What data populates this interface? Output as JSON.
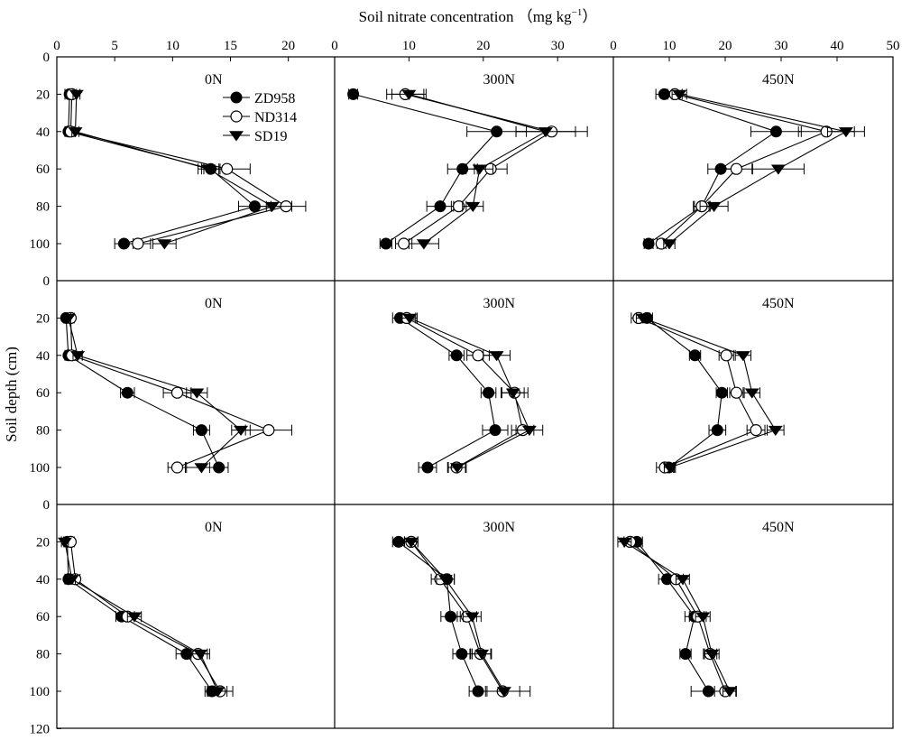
{
  "chart_data": {
    "type": "line",
    "title": "",
    "xlabel": "Soil nitrate concentration （mg kg",
    "xlabel_sup": "−1",
    "xlabel_close": "）",
    "ylabel": "Soil depth (cm)",
    "orientation": "x = concentration, y = depth (downward)",
    "grid": false,
    "legend_position": "top-left panel, right of center",
    "legend": [
      {
        "name": "ZD958",
        "marker": "filled circle"
      },
      {
        "name": "ND314",
        "marker": "open circle"
      },
      {
        "name": "SD19",
        "marker": "filled down-triangle"
      }
    ],
    "x_ticks": [
      [
        0,
        5,
        10,
        15,
        20
      ],
      [
        0,
        10,
        20,
        30
      ],
      [
        0,
        10,
        20,
        30,
        40,
        50
      ]
    ],
    "x_ranges": [
      [
        0,
        24
      ],
      [
        0,
        37.5
      ],
      [
        0,
        50
      ]
    ],
    "y_ticks_row1": [
      0,
      20,
      40,
      60,
      80,
      100
    ],
    "y_ticks_row2": [
      0,
      20,
      40,
      60,
      80,
      100
    ],
    "y_ticks_row3": [
      0,
      20,
      40,
      60,
      80,
      100,
      120
    ],
    "ylim": [
      0,
      120
    ],
    "depths": [
      20,
      40,
      60,
      80,
      100
    ],
    "panels": [
      {
        "label": "0N",
        "row": 0,
        "col": 0,
        "series": [
          {
            "name": "ZD958",
            "x": [
              1.1,
              1.0,
              13.3,
              17.1,
              5.8
            ],
            "err": [
              0.4,
              0.3,
              0.8,
              1.4,
              0.8
            ]
          },
          {
            "name": "ND314",
            "x": [
              1.3,
              1.2,
              14.7,
              19.8,
              7.0
            ],
            "err": [
              0.4,
              0.3,
              2.0,
              1.7,
              1.1
            ]
          },
          {
            "name": "SD19",
            "x": [
              1.7,
              1.6,
              13.1,
              18.6,
              9.3
            ],
            "err": [
              0.3,
              0.3,
              0.9,
              1.7,
              1.0
            ]
          }
        ]
      },
      {
        "label": "300N",
        "row": 0,
        "col": 1,
        "series": [
          {
            "name": "ZD958",
            "x": [
              2.5,
              21.8,
              17.2,
              14.2,
              6.9
            ],
            "err": [
              0.6,
              4.0,
              2.0,
              1.8,
              0.8
            ]
          },
          {
            "name": "ND314",
            "x": [
              9.5,
              29.2,
              21.0,
              16.7,
              9.3
            ],
            "err": [
              2.5,
              4.8,
              2.2,
              1.0,
              1.1
            ]
          },
          {
            "name": "SD19",
            "x": [
              10.0,
              28.4,
              19.5,
              18.6,
              12.0
            ],
            "err": [
              2.3,
              4.0,
              1.8,
              1.4,
              2.0
            ]
          }
        ]
      },
      {
        "label": "450N",
        "row": 0,
        "col": 2,
        "series": [
          {
            "name": "ZD958",
            "x": [
              9.1,
              29.1,
              19.2,
              15.8,
              6.3
            ],
            "err": [
              1.5,
              4.5,
              2.3,
              1.3,
              0.8
            ]
          },
          {
            "name": "ND314",
            "x": [
              11.0,
              38.1,
              22.0,
              15.8,
              8.6
            ],
            "err": [
              1.3,
              5.0,
              2.8,
              1.5,
              0.8
            ]
          },
          {
            "name": "SD19",
            "x": [
              11.8,
              41.6,
              29.5,
              18.0,
              10.0
            ],
            "err": [
              1.3,
              3.3,
              4.6,
              2.5,
              1.0
            ]
          }
        ]
      },
      {
        "label": "0N",
        "row": 1,
        "col": 0,
        "series": [
          {
            "name": "ZD958",
            "x": [
              0.8,
              1.0,
              6.1,
              12.5,
              14.0
            ],
            "err": [
              0.2,
              0.3,
              0.6,
              0.7,
              0.8
            ]
          },
          {
            "name": "ND314",
            "x": [
              1.2,
              1.3,
              10.4,
              18.3,
              10.4
            ],
            "err": [
              0.3,
              0.3,
              1.2,
              2.0,
              0.8
            ]
          },
          {
            "name": "SD19",
            "x": [
              1.0,
              1.8,
              12.1,
              15.9,
              12.5
            ],
            "err": [
              0.2,
              0.4,
              0.9,
              0.8,
              1.4
            ]
          }
        ]
      },
      {
        "label": "300N",
        "row": 1,
        "col": 1,
        "series": [
          {
            "name": "ZD958",
            "x": [
              8.8,
              16.4,
              20.7,
              21.6,
              12.5
            ],
            "err": [
              1.0,
              1.0,
              1.0,
              1.7,
              1.2
            ]
          },
          {
            "name": "ND314",
            "x": [
              9.7,
              19.3,
              24.2,
              25.3,
              16.4
            ],
            "err": [
              1.2,
              1.5,
              1.8,
              1.5,
              1.2
            ]
          },
          {
            "name": "SD19",
            "x": [
              10.1,
              21.8,
              24.0,
              26.2,
              16.5
            ],
            "err": [
              1.0,
              1.8,
              1.5,
              1.8,
              1.2
            ]
          }
        ]
      },
      {
        "label": "450N",
        "row": 1,
        "col": 2,
        "series": [
          {
            "name": "ZD958",
            "x": [
              6.0,
              14.6,
              19.4,
              18.6,
              9.9
            ],
            "err": [
              1.0,
              1.0,
              1.0,
              1.5,
              1.0
            ]
          },
          {
            "name": "ND314",
            "x": [
              4.5,
              20.2,
              22.0,
              25.5,
              9.2
            ],
            "err": [
              1.3,
              1.3,
              1.2,
              1.6,
              1.5
            ]
          },
          {
            "name": "SD19",
            "x": [
              5.3,
              23.2,
              24.8,
              29.0,
              10.1
            ],
            "err": [
              1.2,
              1.4,
              1.4,
              1.5,
              1.0
            ]
          }
        ]
      },
      {
        "label": "0N",
        "row": 2,
        "col": 0,
        "series": [
          {
            "name": "ZD958",
            "x": [
              0.9,
              1.0,
              5.6,
              11.2,
              13.4
            ],
            "err": [
              0.3,
              0.3,
              0.5,
              0.9,
              0.6
            ]
          },
          {
            "name": "ND314",
            "x": [
              1.2,
              1.6,
              6.1,
              12.2,
              14.1
            ],
            "err": [
              0.3,
              0.4,
              0.6,
              0.8,
              1.1
            ]
          },
          {
            "name": "SD19",
            "x": [
              0.7,
              1.3,
              6.7,
              12.4,
              13.9
            ],
            "err": [
              0.3,
              0.3,
              0.6,
              0.8,
              0.8
            ]
          }
        ]
      },
      {
        "label": "300N",
        "row": 2,
        "col": 1,
        "series": [
          {
            "name": "ZD958",
            "x": [
              8.6,
              15.1,
              15.6,
              17.1,
              19.3
            ],
            "err": [
              0.8,
              1.0,
              1.3,
              1.2,
              1.2
            ]
          },
          {
            "name": "ND314",
            "x": [
              10.3,
              14.2,
              17.8,
              19.6,
              22.6
            ],
            "err": [
              0.9,
              1.2,
              1.3,
              1.4,
              2.3
            ]
          },
          {
            "name": "SD19",
            "x": [
              10.3,
              14.9,
              18.5,
              19.8,
              22.8
            ],
            "err": [
              0.9,
              1.2,
              1.2,
              1.3,
              3.5
            ]
          }
        ]
      },
      {
        "label": "450N",
        "row": 2,
        "col": 2,
        "series": [
          {
            "name": "ZD958",
            "x": [
              4.2,
              9.6,
              14.5,
              12.9,
              17.0
            ],
            "err": [
              1.0,
              1.5,
              1.7,
              1.0,
              3.1
            ]
          },
          {
            "name": "ND314",
            "x": [
              3.0,
              11.2,
              15.1,
              17.3,
              20.0
            ],
            "err": [
              1.1,
              1.3,
              1.5,
              1.2,
              1.9
            ]
          },
          {
            "name": "SD19",
            "x": [
              2.0,
              12.4,
              16.0,
              17.6,
              20.8
            ],
            "err": [
              1.2,
              1.2,
              1.3,
              1.3,
              1.2
            ]
          }
        ]
      }
    ]
  }
}
